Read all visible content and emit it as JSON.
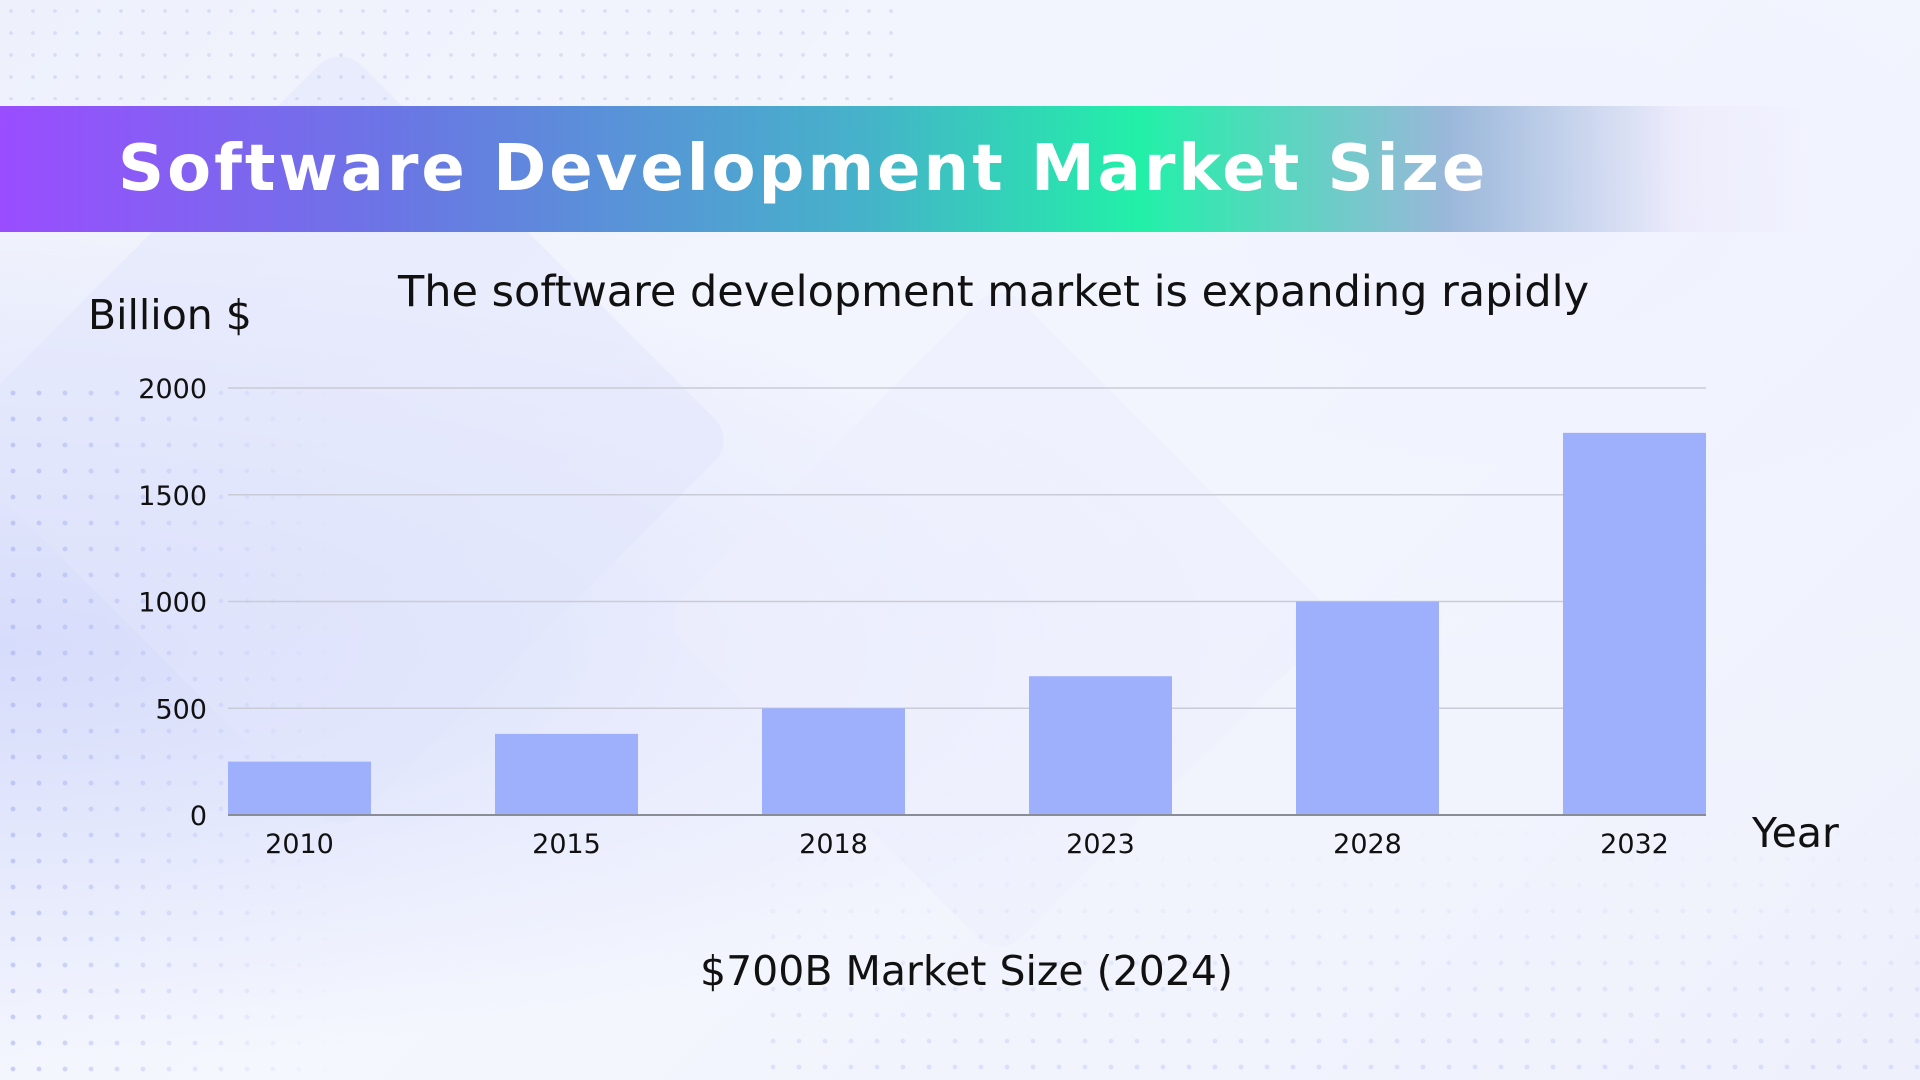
{
  "header": {
    "title": "Software Development Market Size"
  },
  "colors": {
    "bar": "#9eb0fb",
    "grid": "#c9cbd6",
    "axis": "#8a8c96",
    "text": "#111111"
  },
  "footer": {
    "note": "$700B Market Size (2024)"
  },
  "chart_data": {
    "type": "bar",
    "title": "The software development market is expanding rapidly",
    "xlabel": "Year",
    "ylabel": "Billion $",
    "categories": [
      "2010",
      "2015",
      "2018",
      "2023",
      "2028",
      "2032"
    ],
    "values": [
      250,
      380,
      500,
      650,
      1000,
      1790
    ],
    "ylim": [
      0,
      2000
    ],
    "yticks": [
      0,
      500,
      1000,
      1500,
      2000
    ],
    "grid": true,
    "legend": "none"
  }
}
